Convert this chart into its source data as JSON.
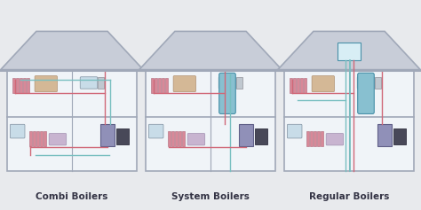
{
  "background_color": "#e8eaed",
  "roof_fill": "#c8cdd8",
  "roof_edge": "#a0a8b8",
  "wall_color": "#a0a8b8",
  "wall_fill": "#f0f4f8",
  "floor_fill": "#e8ecf0",
  "line_hot": "#d06878",
  "line_cold": "#78bfc0",
  "labels": [
    "Combi Boilers",
    "System Boilers",
    "Regular Boilers"
  ],
  "label_fontsize": 7.5,
  "label_color": "#333344",
  "radiator_color": "#d08090",
  "boiler_color": "#8898b8",
  "tank_color": "#80c0d0",
  "pipe_lw": 1.0,
  "wall_lw": 1.2
}
